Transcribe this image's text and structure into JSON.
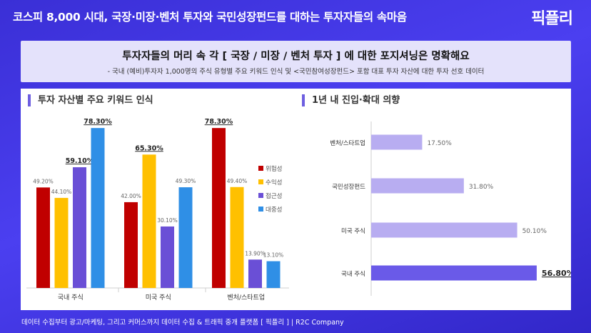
{
  "header": {
    "title": "코스피 8,000 시대, 국장·미장·벤처 투자와 국민성장펀드를 대하는 투자자들의 속마음",
    "logo": "픽플리"
  },
  "banner": {
    "title": "투자자들의 머리 속 각 [ 국장 / 미장 / 벤처 투자 ] 에 대한 포지셔닝은 명확해요",
    "subtitle": "- 국내 (예비)투자자 1,000명의 주식 유형별 주요 키워드 인식 및 <국민참여성장펀드> 포함 대표 투자 자산에 대한 투자 선호 데이터"
  },
  "left_section_title": "투자 자산별 주요 키워드 인식",
  "right_section_title": "1년 내 진입·확대 의향",
  "footer": "데이터 수집부터 광고/마케팅, 그리고 커머스까지 데이터 수집 & 트래픽 중개 플랫폼 [ 픽플리 ]  |  R2C Company",
  "colors": {
    "위험성": "#c00000",
    "수익성": "#ffc000",
    "접근성": "#6a4fd6",
    "대중성": "#2f8fe6",
    "hbar": "#b8adf1",
    "hbar_top": "#6a5ae8"
  },
  "chart_data": [
    {
      "type": "bar",
      "categories": [
        "국내 주식",
        "미국 주식",
        "벤처/스타트업"
      ],
      "series": [
        {
          "name": "위험성",
          "values": [
            49.2,
            42.0,
            78.3
          ],
          "labels": [
            "49.20%",
            "42.00%",
            "78.30%"
          ]
        },
        {
          "name": "수익성",
          "values": [
            44.1,
            65.3,
            49.4
          ],
          "labels": [
            "44.10%",
            "65.30%",
            "49.40%"
          ]
        },
        {
          "name": "접근성",
          "values": [
            59.1,
            30.1,
            13.9
          ],
          "labels": [
            "59.10%",
            "30.10%",
            "13.90%"
          ]
        },
        {
          "name": "대중성",
          "values": [
            78.3,
            49.3,
            13.1
          ],
          "labels": [
            "78.30%",
            "49.30%",
            "13.10%"
          ]
        }
      ],
      "ylim": [
        0,
        85
      ],
      "legend": "right"
    },
    {
      "type": "bar",
      "orientation": "horizontal",
      "categories": [
        "벤처/스타트업",
        "국민성장펀드",
        "미국 주식",
        "국내 주식"
      ],
      "values": [
        17.5,
        31.8,
        50.1,
        56.8
      ],
      "labels": [
        "17.50%",
        "31.80%",
        "50.10%",
        "56.80%"
      ],
      "xlim": [
        0,
        60
      ]
    }
  ]
}
